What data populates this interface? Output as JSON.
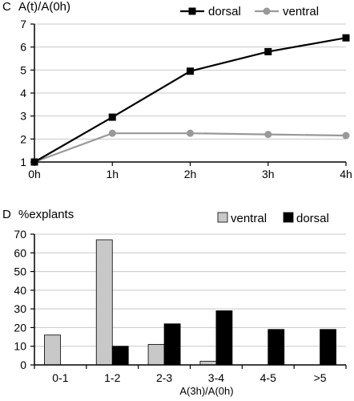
{
  "chart_data": [
    {
      "panel": "C",
      "type": "line",
      "title": "A(t)/A(0h)",
      "xlabel": "",
      "ylabel": "",
      "categories": [
        "0h",
        "1h",
        "2h",
        "3h",
        "4h"
      ],
      "ylim": [
        1,
        7
      ],
      "yticks": [
        1,
        2,
        3,
        4,
        5,
        6,
        7
      ],
      "grid": true,
      "legend_position": "top-right",
      "series": [
        {
          "name": "dorsal",
          "color": "#000000",
          "marker": "square",
          "values": [
            1.0,
            2.95,
            4.95,
            5.8,
            6.4
          ]
        },
        {
          "name": "ventral",
          "color": "#999999",
          "marker": "circle",
          "values": [
            1.0,
            2.25,
            2.25,
            2.2,
            2.15
          ]
        }
      ]
    },
    {
      "panel": "D",
      "type": "bar",
      "title": "%explants",
      "xlabel": "A(3h)/A(0h)",
      "ylabel": "",
      "categories": [
        "0-1",
        "1-2",
        "2-3",
        "3-4",
        "4-5",
        ">5"
      ],
      "ylim": [
        0,
        70
      ],
      "yticks": [
        0,
        10,
        20,
        30,
        40,
        50,
        60,
        70
      ],
      "grid": true,
      "legend_position": "top-right",
      "series": [
        {
          "name": "ventral",
          "color": "#c8c8c8",
          "values": [
            16,
            67,
            11,
            2,
            0,
            0
          ]
        },
        {
          "name": "dorsal",
          "color": "#000000",
          "values": [
            0,
            10,
            22,
            29,
            19,
            19
          ]
        }
      ]
    }
  ]
}
